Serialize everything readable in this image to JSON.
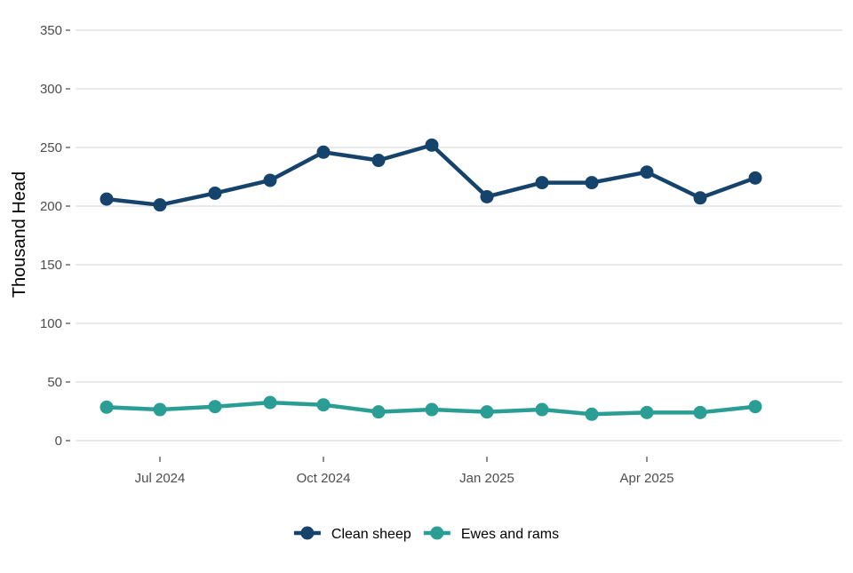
{
  "chart_data": {
    "type": "line",
    "title": "",
    "xlabel": "",
    "ylabel": "Thousand Head",
    "ylim": [
      0,
      350
    ],
    "yticks": [
      0,
      50,
      100,
      150,
      200,
      250,
      300,
      350
    ],
    "xlim": [
      "2024-05-16",
      "2025-07-16"
    ],
    "xticks": [
      {
        "date": "2024-07-01",
        "label": "Jul 2024"
      },
      {
        "date": "2024-10-01",
        "label": "Oct 2024"
      },
      {
        "date": "2025-01-01",
        "label": "Jan 2025"
      },
      {
        "date": "2025-04-01",
        "label": "Apr 2025"
      }
    ],
    "x": [
      "2024-06-01",
      "2024-07-01",
      "2024-08-01",
      "2024-09-01",
      "2024-10-01",
      "2024-11-01",
      "2024-12-01",
      "2025-01-01",
      "2025-02-01",
      "2025-03-01",
      "2025-04-01",
      "2025-05-01",
      "2025-06-01"
    ],
    "grid": true,
    "legend_position": "bottom",
    "series": [
      {
        "name": "Clean sheep",
        "color": "#15436b",
        "values": [
          206,
          201,
          211,
          222,
          246,
          239,
          252,
          208,
          220,
          220,
          229,
          207,
          224
        ]
      },
      {
        "name": "Ewes and rams",
        "color": "#2a9d94",
        "values": [
          28.5,
          26.5,
          29,
          32.5,
          30.5,
          24.5,
          26.5,
          24.5,
          26.5,
          22.5,
          24,
          24,
          29
        ]
      }
    ]
  }
}
